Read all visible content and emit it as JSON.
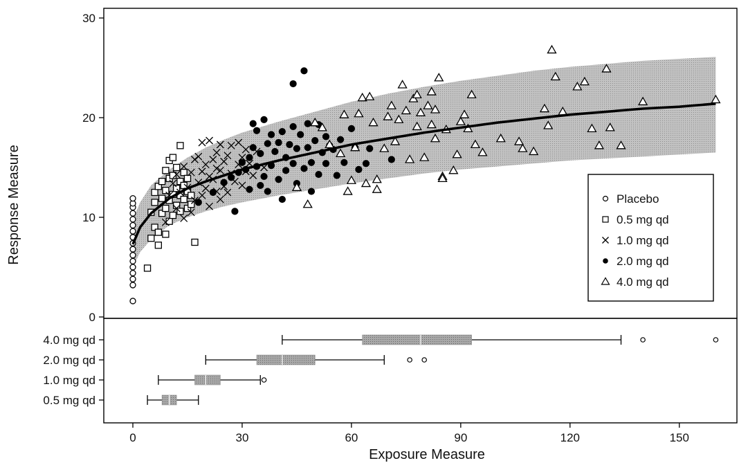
{
  "chart_data": {
    "type": "scatter",
    "xlabel": "Exposure Measure",
    "ylabel": "Response Measure",
    "xlim": [
      -8,
      165
    ],
    "ylim": [
      0,
      30.5
    ],
    "x_ticks": [
      0,
      30,
      60,
      90,
      120,
      150
    ],
    "x_tick_labels": [
      "0",
      "30",
      "60",
      "90",
      "120",
      "150"
    ],
    "y_ticks": [
      0,
      10,
      20,
      30
    ],
    "y_tick_labels": [
      "0",
      "10",
      "20",
      "30"
    ],
    "grid": false,
    "legend_position": "bottom-right",
    "model_fit": {
      "x": [
        0,
        2,
        5,
        10,
        15,
        20,
        25,
        30,
        40,
        50,
        60,
        70,
        80,
        90,
        100,
        110,
        120,
        130,
        140,
        150,
        160
      ],
      "y": [
        7.3,
        9.0,
        10.4,
        11.9,
        12.9,
        13.6,
        14.2,
        14.8,
        15.7,
        16.5,
        17.3,
        17.9,
        18.5,
        19.0,
        19.5,
        19.9,
        20.3,
        20.6,
        20.9,
        21.1,
        21.4
      ],
      "lower": [
        5.0,
        6.5,
        7.8,
        9.2,
        10.0,
        10.6,
        11.1,
        11.5,
        12.2,
        12.8,
        13.4,
        13.9,
        14.4,
        14.8,
        15.1,
        15.4,
        15.7,
        15.9,
        16.1,
        16.3,
        16.5
      ],
      "upper": [
        9.8,
        11.5,
        13.2,
        14.8,
        16.0,
        17.0,
        17.8,
        18.5,
        19.6,
        20.6,
        21.6,
        22.4,
        23.1,
        23.7,
        24.2,
        24.7,
        25.1,
        25.4,
        25.7,
        25.9,
        26.1
      ]
    },
    "series": [
      {
        "name": "Placebo",
        "marker": "circle",
        "points": [
          [
            0,
            1.6
          ],
          [
            0,
            3.2
          ],
          [
            0,
            3.8
          ],
          [
            0,
            4.4
          ],
          [
            0,
            5.0
          ],
          [
            0,
            5.6
          ],
          [
            0,
            6.2
          ],
          [
            0,
            6.8
          ],
          [
            0,
            7.4
          ],
          [
            0,
            8.0
          ],
          [
            0,
            8.6
          ],
          [
            0,
            9.2
          ],
          [
            0,
            9.8
          ],
          [
            0,
            10.4
          ],
          [
            0,
            11.0
          ],
          [
            0,
            11.4
          ],
          [
            0,
            11.9
          ]
        ]
      },
      {
        "name": "0.5 mg qd",
        "marker": "square",
        "points": [
          [
            4,
            4.9
          ],
          [
            5,
            7.9
          ],
          [
            5,
            10.5
          ],
          [
            6,
            9.0
          ],
          [
            6,
            11.5
          ],
          [
            6,
            12.5
          ],
          [
            7,
            7.2
          ],
          [
            7,
            13.1
          ],
          [
            7,
            8.5
          ],
          [
            8,
            10.4
          ],
          [
            8,
            11.9
          ],
          [
            8,
            13.6
          ],
          [
            9,
            8.3
          ],
          [
            9,
            10.9
          ],
          [
            9,
            12.7
          ],
          [
            9,
            14.7
          ],
          [
            10,
            9.6
          ],
          [
            10,
            11.7
          ],
          [
            10,
            13.9
          ],
          [
            10,
            15.7
          ],
          [
            11,
            10.2
          ],
          [
            11,
            12.3
          ],
          [
            11,
            14.2
          ],
          [
            11,
            16.0
          ],
          [
            12,
            11.2
          ],
          [
            12,
            12.9
          ],
          [
            12,
            15.0
          ],
          [
            13,
            10.6
          ],
          [
            13,
            12.2
          ],
          [
            13,
            13.6
          ],
          [
            13,
            17.2
          ],
          [
            14,
            11.8
          ],
          [
            14,
            13.2
          ],
          [
            14,
            14.5
          ],
          [
            15,
            10.9
          ],
          [
            15,
            12.6
          ],
          [
            15,
            13.9
          ],
          [
            16,
            11.3
          ],
          [
            16,
            12.2
          ],
          [
            17,
            7.5
          ]
        ]
      },
      {
        "name": "1.0 mg qd",
        "marker": "x",
        "points": [
          [
            9,
            9.5
          ],
          [
            10,
            12.2
          ],
          [
            11,
            13.4
          ],
          [
            12,
            10.9
          ],
          [
            12,
            14.3
          ],
          [
            13,
            12.5
          ],
          [
            14,
            9.9
          ],
          [
            14,
            15.1
          ],
          [
            15,
            13.0
          ],
          [
            16,
            10.5
          ],
          [
            16,
            14.5
          ],
          [
            17,
            11.7
          ],
          [
            17,
            15.8
          ],
          [
            18,
            13.5
          ],
          [
            18,
            16.1
          ],
          [
            19,
            12.2
          ],
          [
            19,
            14.6
          ],
          [
            19,
            17.5
          ],
          [
            20,
            12.9
          ],
          [
            20,
            15.3
          ],
          [
            21,
            11.1
          ],
          [
            21,
            14.1
          ],
          [
            21,
            17.7
          ],
          [
            22,
            13.8
          ],
          [
            22,
            15.8
          ],
          [
            23,
            12.6
          ],
          [
            23,
            14.9
          ],
          [
            23,
            16.5
          ],
          [
            24,
            11.8
          ],
          [
            24,
            14.7
          ],
          [
            24,
            17.3
          ],
          [
            25,
            13.1
          ],
          [
            25,
            15.6
          ],
          [
            26,
            12.5
          ],
          [
            26,
            16.2
          ],
          [
            27,
            14.4
          ],
          [
            27,
            17.2
          ],
          [
            28,
            13.6
          ],
          [
            29,
            15.3
          ],
          [
            29,
            17.5
          ],
          [
            30,
            13.2
          ],
          [
            30,
            16.0
          ],
          [
            31,
            14.6
          ],
          [
            31,
            16.8
          ],
          [
            32,
            15.4
          ],
          [
            33,
            14.2
          ],
          [
            34,
            16.6
          ],
          [
            36,
            15.0
          ]
        ]
      },
      {
        "name": "2.0 mg qd",
        "marker": "filled-circle",
        "points": [
          [
            18,
            11.5
          ],
          [
            22,
            12.5
          ],
          [
            25,
            13.5
          ],
          [
            27,
            14.0
          ],
          [
            28,
            10.6
          ],
          [
            29,
            14.5
          ],
          [
            30,
            15.5
          ],
          [
            31,
            14.8
          ],
          [
            32,
            16.0
          ],
          [
            32,
            12.8
          ],
          [
            33,
            17.0
          ],
          [
            33,
            19.4
          ],
          [
            34,
            15.1
          ],
          [
            34,
            18.7
          ],
          [
            35,
            13.2
          ],
          [
            35,
            16.4
          ],
          [
            36,
            19.8
          ],
          [
            36,
            14.1
          ],
          [
            37,
            17.4
          ],
          [
            37,
            12.6
          ],
          [
            38,
            15.2
          ],
          [
            38,
            18.3
          ],
          [
            39,
            16.6
          ],
          [
            40,
            13.8
          ],
          [
            40,
            17.5
          ],
          [
            41,
            11.8
          ],
          [
            41,
            18.6
          ],
          [
            42,
            16.0
          ],
          [
            42,
            14.7
          ],
          [
            43,
            17.3
          ],
          [
            44,
            15.4
          ],
          [
            44,
            19.1
          ],
          [
            45,
            16.9
          ],
          [
            45,
            13.4
          ],
          [
            46,
            18.3
          ],
          [
            47,
            14.9
          ],
          [
            47,
            24.7
          ],
          [
            48,
            17.0
          ],
          [
            48,
            19.4
          ],
          [
            49,
            15.5
          ],
          [
            49,
            12.6
          ],
          [
            50,
            17.7
          ],
          [
            51,
            14.3
          ],
          [
            51,
            19.3
          ],
          [
            52,
            16.5
          ],
          [
            53,
            18.1
          ],
          [
            53,
            15.4
          ],
          [
            54,
            17.2
          ],
          [
            55,
            16.8
          ],
          [
            56,
            14.2
          ],
          [
            57,
            17.8
          ],
          [
            58,
            15.5
          ],
          [
            60,
            18.9
          ],
          [
            61,
            17.0
          ],
          [
            62,
            14.8
          ],
          [
            64,
            15.4
          ],
          [
            65,
            16.9
          ],
          [
            71,
            15.8
          ],
          [
            44,
            23.4
          ]
        ]
      },
      {
        "name": "4.0 mg qd",
        "marker": "triangle",
        "points": [
          [
            45,
            13.0
          ],
          [
            48,
            11.3
          ],
          [
            50,
            19.5
          ],
          [
            52,
            19.0
          ],
          [
            54,
            17.3
          ],
          [
            57,
            16.4
          ],
          [
            58,
            20.3
          ],
          [
            59,
            12.6
          ],
          [
            60,
            13.7
          ],
          [
            61,
            17.0
          ],
          [
            62,
            20.4
          ],
          [
            63,
            22.0
          ],
          [
            64,
            13.4
          ],
          [
            65,
            22.1
          ],
          [
            66,
            19.5
          ],
          [
            67,
            12.8
          ],
          [
            67,
            13.8
          ],
          [
            69,
            16.9
          ],
          [
            70,
            20.1
          ],
          [
            71,
            21.2
          ],
          [
            72,
            17.6
          ],
          [
            73,
            19.8
          ],
          [
            74,
            23.3
          ],
          [
            75,
            20.7
          ],
          [
            76,
            15.8
          ],
          [
            77,
            21.9
          ],
          [
            78,
            19.1
          ],
          [
            78,
            22.3
          ],
          [
            79,
            20.5
          ],
          [
            80,
            16.0
          ],
          [
            81,
            21.2
          ],
          [
            82,
            19.3
          ],
          [
            82,
            22.6
          ],
          [
            83,
            17.9
          ],
          [
            83,
            20.8
          ],
          [
            84,
            24.0
          ],
          [
            85,
            14.1
          ],
          [
            86,
            18.8
          ],
          [
            88,
            14.7
          ],
          [
            89,
            16.3
          ],
          [
            90,
            19.6
          ],
          [
            91,
            20.3
          ],
          [
            92,
            18.9
          ],
          [
            93,
            22.3
          ],
          [
            94,
            17.3
          ],
          [
            96,
            16.5
          ],
          [
            101,
            17.9
          ],
          [
            106,
            17.6
          ],
          [
            107,
            16.9
          ],
          [
            110,
            16.6
          ],
          [
            113,
            20.9
          ],
          [
            114,
            19.2
          ],
          [
            115,
            26.8
          ],
          [
            116,
            24.1
          ],
          [
            118,
            20.6
          ],
          [
            122,
            23.1
          ],
          [
            124,
            23.6
          ],
          [
            126,
            18.9
          ],
          [
            128,
            17.2
          ],
          [
            130,
            24.9
          ],
          [
            131,
            19.0
          ],
          [
            134,
            17.2
          ],
          [
            140,
            21.6
          ],
          [
            160,
            21.8
          ],
          [
            85,
            13.9
          ]
        ]
      }
    ],
    "boxplots": {
      "categories": [
        "4.0 mg qd",
        "2.0 mg qd",
        "1.0 mg qd",
        "0.5 mg qd"
      ],
      "boxes": [
        {
          "whisker_low": 41,
          "q1": 63,
          "median": 79,
          "q3": 93,
          "whisker_high": 134,
          "outliers": [
            140,
            160
          ]
        },
        {
          "whisker_low": 20,
          "q1": 34,
          "median": 41,
          "q3": 50,
          "whisker_high": 69,
          "outliers": [
            76,
            80
          ]
        },
        {
          "whisker_low": 7,
          "q1": 17,
          "median": 20,
          "q3": 24,
          "whisker_high": 35,
          "outliers": [
            36
          ]
        },
        {
          "whisker_low": 4,
          "q1": 8,
          "median": 10,
          "q3": 12,
          "whisker_high": 18,
          "outliers": []
        }
      ]
    }
  }
}
